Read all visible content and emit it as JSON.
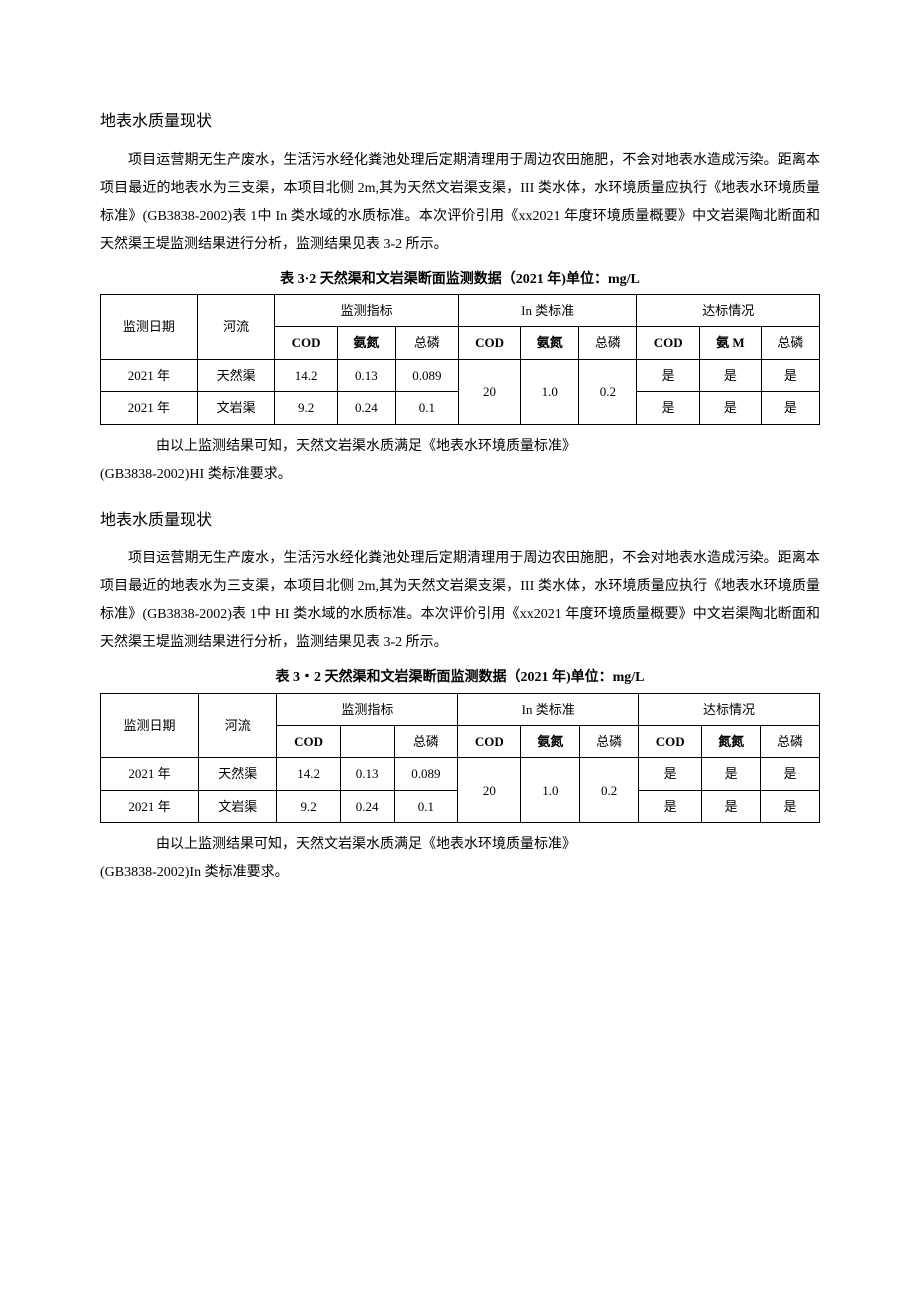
{
  "section1": {
    "title": "地表水质量现状",
    "paragraph": "项目运营期无生产废水，生活污水经化粪池处理后定期清理用于周边农田施肥，不会对地表水造成污染。距离本项目最近的地表水为三支渠，本项目北侧 2m,其为天然文岩渠支渠，III 类水体，水环境质量应执行《地表水环境质量标准》(GB3838-2002)表 1中 In 类水域的水质标准。本次评价引用《xx2021 年度环境质量概要》中文岩渠陶北断面和天然渠王堤监测结果进行分析，监测结果见表 3-2 所示。",
    "tableCaption": "表 3·2 天然渠和文岩渠断面监测数据（2021 年)单位：mg/L",
    "table": {
      "headerRow1": {
        "col1": "监测日期",
        "col2": "河流",
        "group1": "监测指标",
        "group2": "In 类标准",
        "group3": "达标情况"
      },
      "headerRow2": {
        "g1c1": "COD",
        "g1c2": "氨氮",
        "g1c3": "总磷",
        "g2c1": "COD",
        "g2c2": "氨氮",
        "g2c3": "总磷",
        "g3c1": "COD",
        "g3c2": "氨 M",
        "g3c3": "总磷"
      },
      "rows": [
        {
          "date": "2021 年",
          "river": "天然渠",
          "m_cod": "14.2",
          "m_nh": "0.13",
          "m_tp": "0.089",
          "c1": "是",
          "c2": "是",
          "c3": "是"
        },
        {
          "date": "2021 年",
          "river": "文岩渠",
          "m_cod": "9.2",
          "m_nh": "0.24",
          "m_tp": "0.1",
          "c1": "是",
          "c2": "是",
          "c3": "是"
        }
      ],
      "standard": {
        "cod": "20",
        "nh": "1.0",
        "tp": "0.2"
      }
    },
    "afterTable1": "由以上监测结果可知，天然文岩渠水质满足《地表水环境质量标准》",
    "afterTable2": "(GB3838-2002)HI 类标准要求。"
  },
  "section2": {
    "title": "地表水质量现状",
    "paragraph": "项目运营期无生产废水，生活污水经化粪池处理后定期清理用于周边农田施肥，不会对地表水造成污染。距离本项目最近的地表水为三支渠，本项目北侧 2m,其为天然文岩渠支渠，III 类水体，水环境质量应执行《地表水环境质量标准》(GB3838-2002)表 1中 HI 类水域的水质标准。本次评价引用《xx2021 年度环境质量概要》中文岩渠陶北断面和天然渠王堤监测结果进行分析，监测结果见表 3-2 所示。",
    "tableCaption": "表 3・2 天然渠和文岩渠断面监测数据（2021 年)单位：mg/L",
    "table": {
      "headerRow1": {
        "col1": "监测日期",
        "col2": "河流",
        "group1": "监测指标",
        "group2": "In 类标准",
        "group3": "达标情况"
      },
      "headerRow2": {
        "g1c1": "COD",
        "g1c2": "",
        "g1c3": "总磷",
        "g2c1": "COD",
        "g2c2": "氨氮",
        "g2c3": "总磷",
        "g3c1": "COD",
        "g3c2": "氮氮",
        "g3c3": "总磷"
      },
      "rows": [
        {
          "date": "2021 年",
          "river": "天然渠",
          "m_cod": "14.2",
          "m_nh": "0.13",
          "m_tp": "0.089",
          "c1": "是",
          "c2": "是",
          "c3": "是"
        },
        {
          "date": "2021 年",
          "river": "文岩渠",
          "m_cod": "9.2",
          "m_nh": "0.24",
          "m_tp": "0.1",
          "c1": "是",
          "c2": "是",
          "c3": "是"
        }
      ],
      "standard": {
        "cod": "20",
        "nh": "1.0",
        "tp": "0.2"
      }
    },
    "afterTable1": "由以上监测结果可知，天然文岩渠水质满足《地表水环境质量标准》",
    "afterTable2": "(GB3838-2002)In 类标准要求。"
  }
}
